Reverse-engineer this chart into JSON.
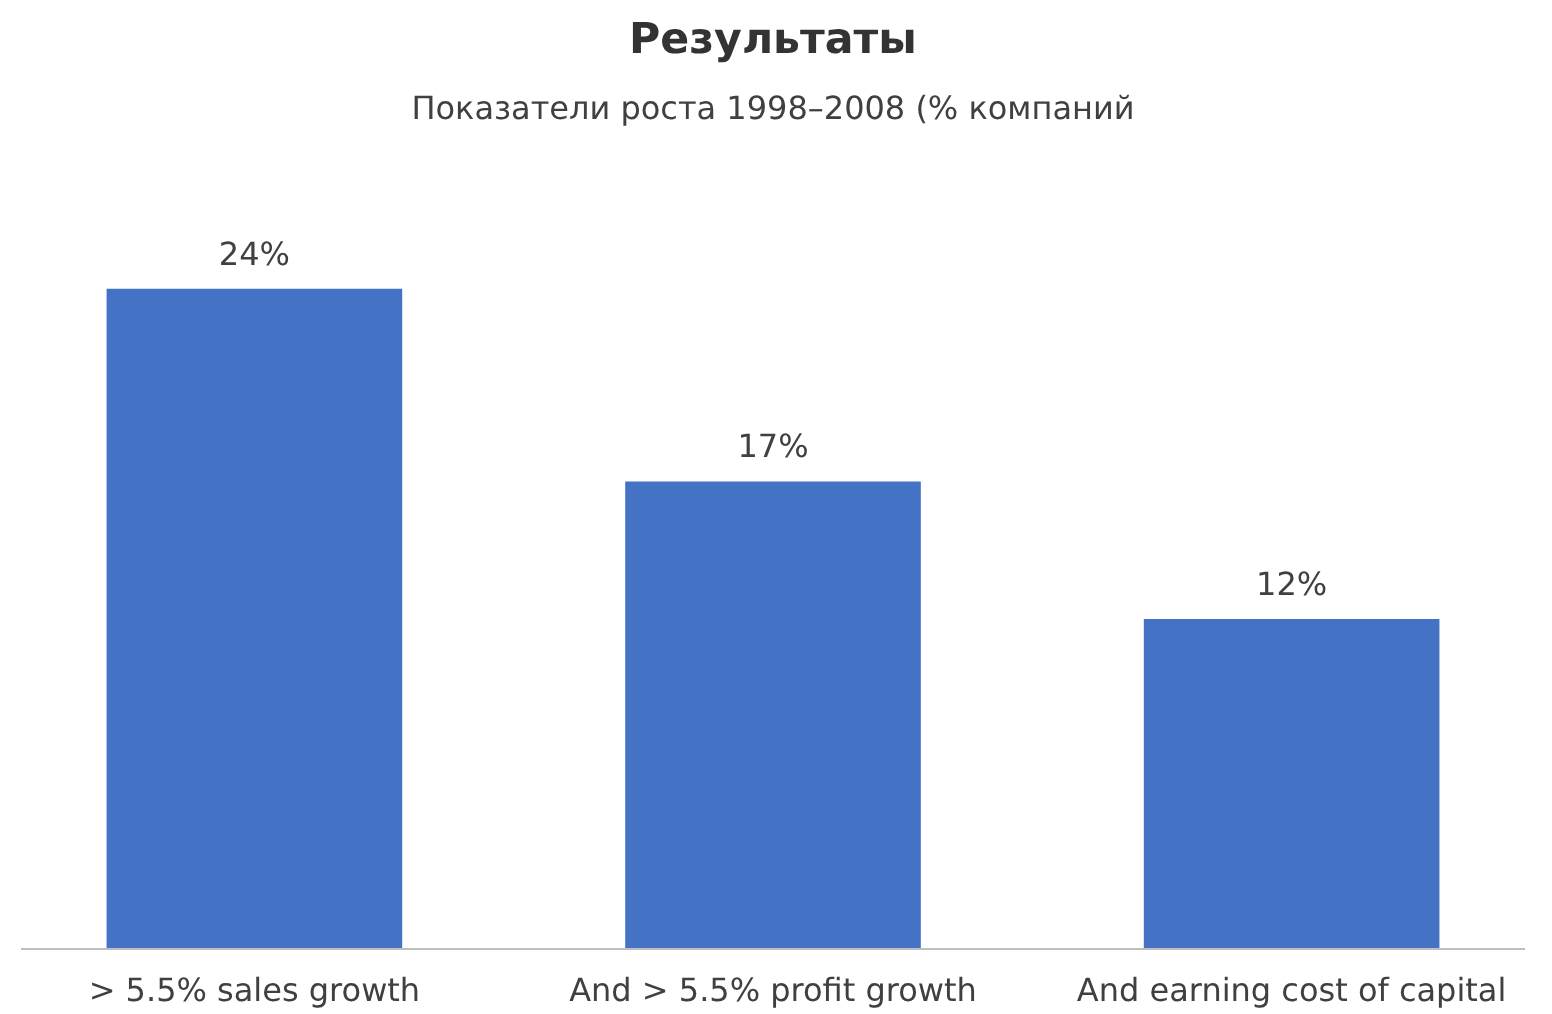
{
  "chart_data": {
    "type": "bar",
    "title": "Результаты",
    "subtitle": "Показатели роста 1998–2008 (% компаний",
    "categories": [
      "> 5.5% sales growth",
      "And > 5.5% profit growth",
      "And earning cost of capital"
    ],
    "values": [
      24,
      17,
      12
    ],
    "color": "#4472c4",
    "value_labels": [
      "24%",
      "17%",
      "12%"
    ],
    "grid": false,
    "tick_labels": "x"
  }
}
